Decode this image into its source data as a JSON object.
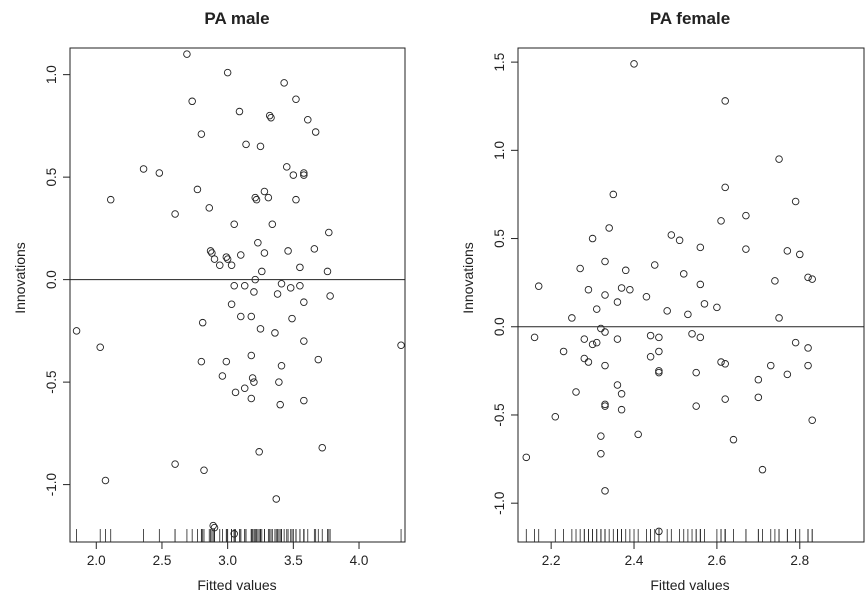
{
  "chart_data": [
    {
      "type": "scatter",
      "title": "PA male",
      "xlabel": "Fitted values",
      "ylabel": "Innovations",
      "xlim": [
        1.8,
        4.35
      ],
      "ylim": [
        -1.28,
        1.13
      ],
      "xticks": [
        2.0,
        2.5,
        3.0,
        3.5,
        4.0
      ],
      "xtick_labels": [
        "2.0",
        "2.5",
        "3.0",
        "3.5",
        "4.0"
      ],
      "yticks": [
        -1.0,
        -0.5,
        0.0,
        0.5,
        1.0
      ],
      "ytick_labels": [
        "-1.0",
        "-0.5",
        "0.0",
        "0.5",
        "1.0"
      ],
      "reference_line_y": 0,
      "rug": true,
      "points": [
        [
          2.69,
          1.1
        ],
        [
          3.0,
          1.01
        ],
        [
          3.43,
          0.96
        ],
        [
          2.73,
          0.87
        ],
        [
          3.52,
          0.88
        ],
        [
          3.09,
          0.82
        ],
        [
          3.32,
          0.8
        ],
        [
          3.33,
          0.79
        ],
        [
          3.61,
          0.78
        ],
        [
          2.8,
          0.71
        ],
        [
          3.67,
          0.72
        ],
        [
          3.14,
          0.66
        ],
        [
          3.25,
          0.65
        ],
        [
          2.36,
          0.54
        ],
        [
          2.48,
          0.52
        ],
        [
          3.45,
          0.55
        ],
        [
          3.58,
          0.52
        ],
        [
          3.58,
          0.51
        ],
        [
          3.5,
          0.51
        ],
        [
          2.77,
          0.44
        ],
        [
          3.28,
          0.43
        ],
        [
          3.31,
          0.4
        ],
        [
          3.21,
          0.4
        ],
        [
          3.22,
          0.39
        ],
        [
          2.11,
          0.39
        ],
        [
          3.52,
          0.39
        ],
        [
          2.86,
          0.35
        ],
        [
          2.6,
          0.32
        ],
        [
          3.05,
          0.27
        ],
        [
          3.34,
          0.27
        ],
        [
          3.77,
          0.23
        ],
        [
          3.23,
          0.18
        ],
        [
          2.87,
          0.14
        ],
        [
          3.46,
          0.14
        ],
        [
          3.66,
          0.15
        ],
        [
          3.28,
          0.13
        ],
        [
          2.88,
          0.13
        ],
        [
          2.9,
          0.1
        ],
        [
          2.99,
          0.11
        ],
        [
          3.0,
          0.1
        ],
        [
          3.1,
          0.12
        ],
        [
          3.03,
          0.07
        ],
        [
          3.26,
          0.04
        ],
        [
          2.94,
          0.07
        ],
        [
          3.55,
          0.06
        ],
        [
          3.76,
          0.04
        ],
        [
          3.21,
          0.0
        ],
        [
          3.05,
          -0.03
        ],
        [
          3.13,
          -0.03
        ],
        [
          3.41,
          -0.02
        ],
        [
          3.48,
          -0.04
        ],
        [
          3.55,
          -0.03
        ],
        [
          3.38,
          -0.07
        ],
        [
          3.78,
          -0.08
        ],
        [
          3.2,
          -0.06
        ],
        [
          3.58,
          -0.11
        ],
        [
          3.03,
          -0.12
        ],
        [
          2.81,
          -0.21
        ],
        [
          3.1,
          -0.18
        ],
        [
          3.18,
          -0.18
        ],
        [
          3.49,
          -0.19
        ],
        [
          1.85,
          -0.25
        ],
        [
          3.25,
          -0.24
        ],
        [
          3.36,
          -0.26
        ],
        [
          3.58,
          -0.3
        ],
        [
          2.03,
          -0.33
        ],
        [
          4.32,
          -0.32
        ],
        [
          3.18,
          -0.37
        ],
        [
          2.8,
          -0.4
        ],
        [
          2.99,
          -0.4
        ],
        [
          3.41,
          -0.42
        ],
        [
          3.69,
          -0.39
        ],
        [
          2.96,
          -0.47
        ],
        [
          3.19,
          -0.48
        ],
        [
          3.2,
          -0.5
        ],
        [
          3.39,
          -0.5
        ],
        [
          3.13,
          -0.53
        ],
        [
          3.06,
          -0.55
        ],
        [
          3.18,
          -0.58
        ],
        [
          3.58,
          -0.59
        ],
        [
          3.4,
          -0.61
        ],
        [
          3.72,
          -0.82
        ],
        [
          3.24,
          -0.84
        ],
        [
          2.6,
          -0.9
        ],
        [
          2.82,
          -0.93
        ],
        [
          2.07,
          -0.98
        ],
        [
          3.37,
          -1.07
        ],
        [
          2.89,
          -1.2
        ],
        [
          2.9,
          -1.21
        ],
        [
          3.05,
          -1.24
        ]
      ]
    },
    {
      "type": "scatter",
      "title": "PA female",
      "xlabel": "Fitted values",
      "ylabel": "Innovations",
      "xlim": [
        2.12,
        2.955
      ],
      "ylim": [
        -1.22,
        1.58
      ],
      "xticks": [
        2.2,
        2.4,
        2.6,
        2.8
      ],
      "xtick_labels": [
        "2.2",
        "2.4",
        "2.6",
        "2.8"
      ],
      "yticks": [
        -1.0,
        -0.5,
        0.0,
        0.5,
        1.0,
        1.5
      ],
      "ytick_labels": [
        "-1.0",
        "-0.5",
        "0.0",
        "0.5",
        "1.0",
        "1.5"
      ],
      "reference_line_y": 0,
      "rug": true,
      "points": [
        [
          2.4,
          1.49
        ],
        [
          2.62,
          1.28
        ],
        [
          2.75,
          0.95
        ],
        [
          2.62,
          0.79
        ],
        [
          2.35,
          0.75
        ],
        [
          2.79,
          0.71
        ],
        [
          2.67,
          0.63
        ],
        [
          2.61,
          0.6
        ],
        [
          2.34,
          0.56
        ],
        [
          2.49,
          0.52
        ],
        [
          2.3,
          0.5
        ],
        [
          2.51,
          0.49
        ],
        [
          2.56,
          0.45
        ],
        [
          2.67,
          0.44
        ],
        [
          2.77,
          0.43
        ],
        [
          2.8,
          0.41
        ],
        [
          2.33,
          0.37
        ],
        [
          2.45,
          0.35
        ],
        [
          2.27,
          0.33
        ],
        [
          2.38,
          0.32
        ],
        [
          2.52,
          0.3
        ],
        [
          2.82,
          0.28
        ],
        [
          2.83,
          0.27
        ],
        [
          2.74,
          0.26
        ],
        [
          2.56,
          0.24
        ],
        [
          2.17,
          0.23
        ],
        [
          2.37,
          0.22
        ],
        [
          2.39,
          0.21
        ],
        [
          2.29,
          0.21
        ],
        [
          2.33,
          0.18
        ],
        [
          2.43,
          0.17
        ],
        [
          2.36,
          0.14
        ],
        [
          2.57,
          0.13
        ],
        [
          2.6,
          0.11
        ],
        [
          2.31,
          0.1
        ],
        [
          2.48,
          0.09
        ],
        [
          2.53,
          0.07
        ],
        [
          2.75,
          0.05
        ],
        [
          2.25,
          0.05
        ],
        [
          2.32,
          -0.01
        ],
        [
          2.33,
          -0.03
        ],
        [
          2.44,
          -0.05
        ],
        [
          2.54,
          -0.04
        ],
        [
          2.46,
          -0.06
        ],
        [
          2.56,
          -0.06
        ],
        [
          2.36,
          -0.07
        ],
        [
          2.16,
          -0.06
        ],
        [
          2.28,
          -0.07
        ],
        [
          2.31,
          -0.09
        ],
        [
          2.3,
          -0.1
        ],
        [
          2.79,
          -0.09
        ],
        [
          2.82,
          -0.12
        ],
        [
          2.23,
          -0.14
        ],
        [
          2.46,
          -0.14
        ],
        [
          2.44,
          -0.17
        ],
        [
          2.28,
          -0.18
        ],
        [
          2.29,
          -0.2
        ],
        [
          2.61,
          -0.2
        ],
        [
          2.33,
          -0.22
        ],
        [
          2.62,
          -0.21
        ],
        [
          2.82,
          -0.22
        ],
        [
          2.73,
          -0.22
        ],
        [
          2.96,
          -0.25
        ],
        [
          2.46,
          -0.25
        ],
        [
          2.46,
          -0.26
        ],
        [
          2.55,
          -0.26
        ],
        [
          2.77,
          -0.27
        ],
        [
          2.7,
          -0.3
        ],
        [
          2.36,
          -0.33
        ],
        [
          2.26,
          -0.37
        ],
        [
          2.37,
          -0.38
        ],
        [
          2.7,
          -0.4
        ],
        [
          2.62,
          -0.41
        ],
        [
          2.33,
          -0.44
        ],
        [
          2.33,
          -0.45
        ],
        [
          2.55,
          -0.45
        ],
        [
          2.37,
          -0.47
        ],
        [
          2.21,
          -0.51
        ],
        [
          2.83,
          -0.53
        ],
        [
          2.41,
          -0.61
        ],
        [
          2.32,
          -0.62
        ],
        [
          2.64,
          -0.64
        ],
        [
          2.32,
          -0.72
        ],
        [
          2.14,
          -0.74
        ],
        [
          2.71,
          -0.81
        ],
        [
          2.33,
          -0.93
        ],
        [
          2.46,
          -1.16
        ]
      ]
    }
  ]
}
